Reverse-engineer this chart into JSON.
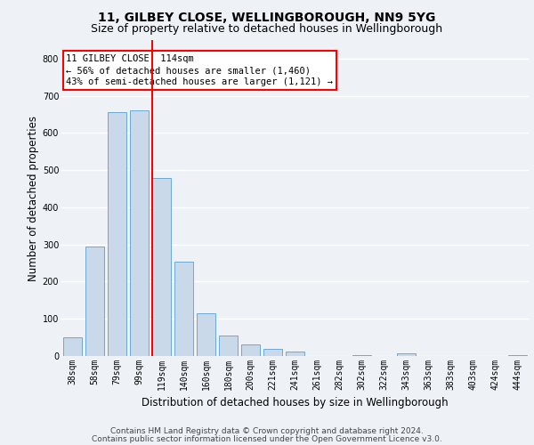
{
  "title1": "11, GILBEY CLOSE, WELLINGBOROUGH, NN9 5YG",
  "title2": "Size of property relative to detached houses in Wellingborough",
  "xlabel": "Distribution of detached houses by size in Wellingborough",
  "ylabel": "Number of detached properties",
  "categories": [
    "38sqm",
    "58sqm",
    "79sqm",
    "99sqm",
    "119sqm",
    "140sqm",
    "160sqm",
    "180sqm",
    "200sqm",
    "221sqm",
    "241sqm",
    "261sqm",
    "282sqm",
    "302sqm",
    "322sqm",
    "343sqm",
    "363sqm",
    "383sqm",
    "403sqm",
    "424sqm",
    "444sqm"
  ],
  "values": [
    50,
    295,
    655,
    660,
    480,
    253,
    115,
    55,
    30,
    18,
    13,
    0,
    0,
    3,
    0,
    6,
    0,
    0,
    0,
    0,
    3
  ],
  "bar_color": "#c9d9e9",
  "bar_edge_color": "#6aaad4",
  "marker_label": "11 GILBEY CLOSE: 114sqm",
  "annotation_line1": "← 56% of detached houses are smaller (1,460)",
  "annotation_line2": "43% of semi-detached houses are larger (1,121) →",
  "annotation_box_color": "white",
  "annotation_box_edge_color": "red",
  "vline_color": "red",
  "ylim": [
    0,
    850
  ],
  "yticks": [
    0,
    100,
    200,
    300,
    400,
    500,
    600,
    700,
    800
  ],
  "footnote1": "Contains HM Land Registry data © Crown copyright and database right 2024.",
  "footnote2": "Contains public sector information licensed under the Open Government Licence v3.0.",
  "bg_color": "#eef2f7",
  "plot_bg_color": "#eef2f7",
  "grid_color": "white",
  "title1_fontsize": 10,
  "title2_fontsize": 9,
  "xlabel_fontsize": 8.5,
  "ylabel_fontsize": 8.5,
  "tick_fontsize": 7,
  "footnote_fontsize": 6.5,
  "annot_fontsize": 7.5
}
